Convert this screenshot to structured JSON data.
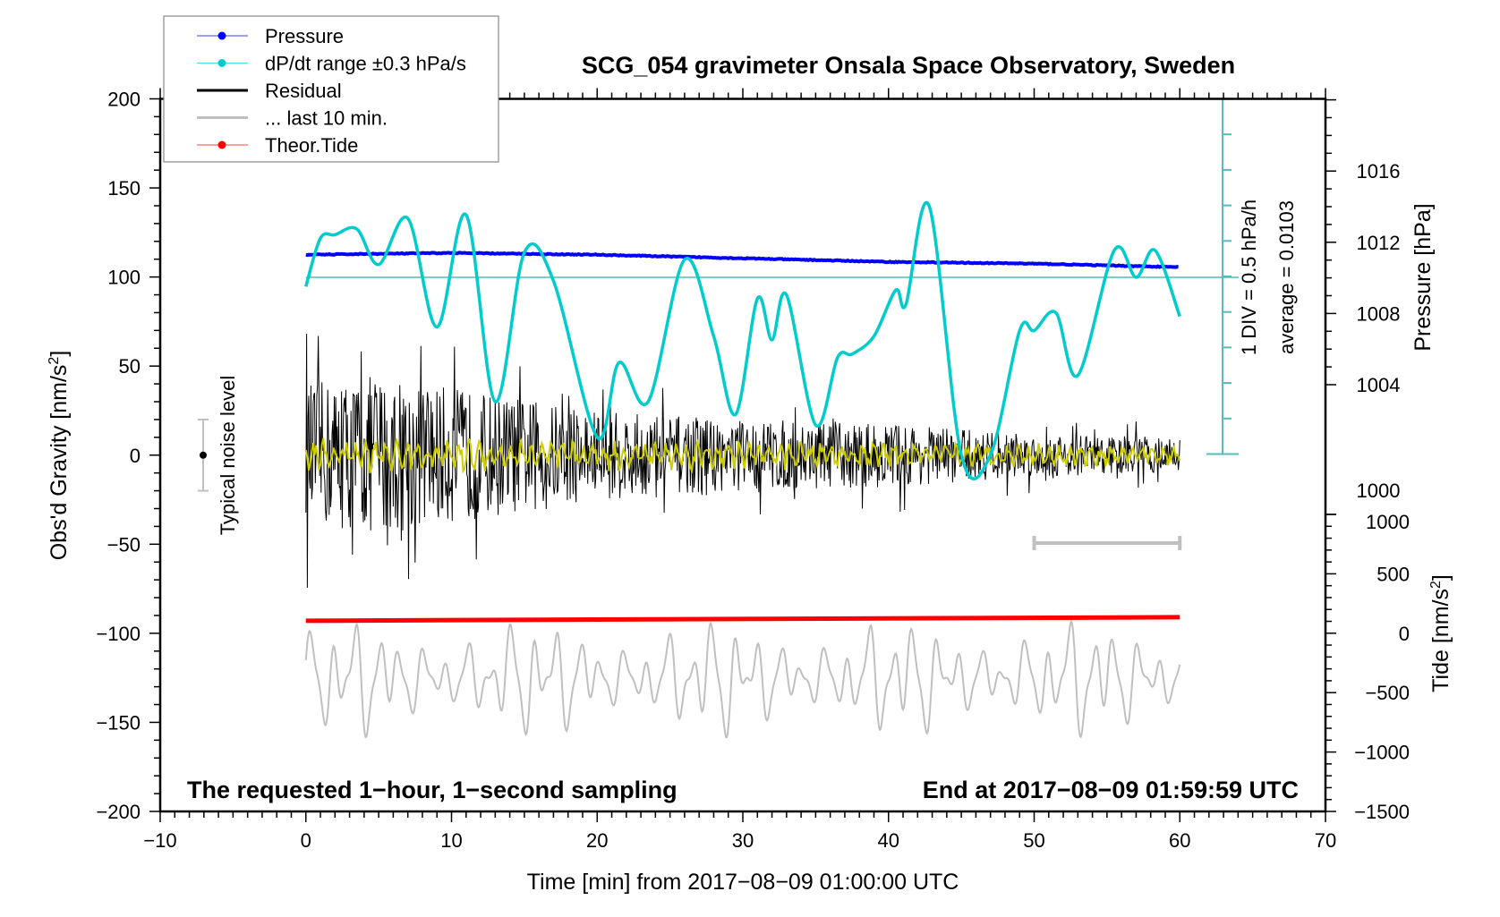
{
  "chart_data": {
    "type": "line",
    "title": "SCG_054 gravimeter Onsala Space Observatory, Sweden",
    "xlabel": "Time [min] from 2017−08−09 01:00:00 UTC",
    "ylabel": "Obs'd Gravity [nm/s",
    "ylabel_sup": "2",
    "ylabel_end": "]",
    "xlim": [
      -10,
      70
    ],
    "ylim": [
      -200,
      200
    ],
    "x_ticks": [
      "−10",
      "0",
      "10",
      "20",
      "30",
      "40",
      "50",
      "60",
      "70"
    ],
    "y_ticks": [
      "200",
      "150",
      "100",
      "50",
      "0",
      "−50",
      "−100",
      "−150",
      "−200"
    ],
    "pressure_axis": {
      "label": "Pressure [hPa]",
      "ticks": [
        "1016",
        "1012",
        "1008",
        "1004",
        "1000"
      ]
    },
    "tide_axis": {
      "label": "Tide [nm/s",
      "label_sup": "2",
      "label_end": "]",
      "ticks": [
        "1000",
        "500",
        "0",
        "−500",
        "−1000",
        "−1500"
      ],
      "range": [
        -1500,
        1000
      ]
    },
    "legend": {
      "placement": "top-left",
      "entries": [
        {
          "label": "Pressure",
          "color": "#0000ff",
          "marker": true
        },
        {
          "label": "dP/dt range ±0.3 hPa/s",
          "color": "#00cccc",
          "marker": true
        },
        {
          "label": "Residual",
          "color": "#000000",
          "marker": false
        },
        {
          "label": "... last 10 min.",
          "color": "#c0c0c0",
          "marker": false
        },
        {
          "label": "Theor.Tide",
          "color": "#ff0000",
          "marker": true
        }
      ]
    },
    "dpdt_scale": {
      "div_label": "1 DIV = 0.5 hPa/h",
      "average_label": "average = 0.0103",
      "divisions": 10,
      "hpa_per_div": 0.5
    },
    "noise_label": "Typical noise level",
    "noise_level": 20,
    "footer_left": "The requested 1−hour, 1−second sampling",
    "footer_right": "End at 2017−08−09 01:59:59 UTC",
    "series": [
      {
        "name": "Pressure",
        "unit": "hPa",
        "x": [
          0,
          10,
          20,
          30,
          40,
          50,
          60
        ],
        "values": [
          1011.3,
          1011.4,
          1011.3,
          1011.1,
          1010.9,
          1010.8,
          1010.6
        ]
      },
      {
        "name": "dP/dt",
        "unit": "hPa/h relative to average",
        "x": [
          0,
          1,
          2,
          3.5,
          5,
          7,
          9,
          11,
          13,
          15,
          17,
          20,
          21.5,
          23.5,
          26,
          28,
          29.5,
          31,
          32,
          33,
          35,
          36.5,
          37.5,
          39,
          40.5,
          41.2,
          42.8,
          45,
          47,
          49,
          50,
          51.5,
          53,
          55.5,
          57,
          58.3,
          60
        ],
        "values": [
          -0.13,
          0.55,
          0.6,
          0.68,
          0.18,
          0.83,
          -0.7,
          0.88,
          -1.75,
          0.35,
          -0.05,
          -2.25,
          -1.2,
          -1.75,
          0.25,
          -0.83,
          -1.93,
          -0.3,
          -0.88,
          -0.25,
          -2.08,
          -1.13,
          -1.08,
          -0.83,
          -0.18,
          -0.38,
          1.0,
          -2.5,
          -2.5,
          -0.75,
          -0.75,
          -0.5,
          -1.38,
          0.38,
          0.0,
          0.38,
          -0.55
        ]
      },
      {
        "name": "Residual",
        "unit": "nm/s2",
        "envelope_x": [
          0,
          5,
          10,
          20,
          30,
          40,
          50,
          60
        ],
        "envelope_amplitude": [
          40,
          45,
          38,
          25,
          20,
          18,
          12,
          10
        ]
      },
      {
        "name": "Residual filtered",
        "unit": "nm/s2",
        "amplitude": 7
      },
      {
        "name": "... last 10 min.",
        "unit": "nm/s2",
        "center": -125,
        "amplitude": 30
      },
      {
        "name": "Theor.Tide",
        "unit": "nm/s2",
        "x": [
          0,
          60
        ],
        "values": [
          105,
          135
        ]
      }
    ],
    "last10_range": [
      50,
      60
    ]
  }
}
